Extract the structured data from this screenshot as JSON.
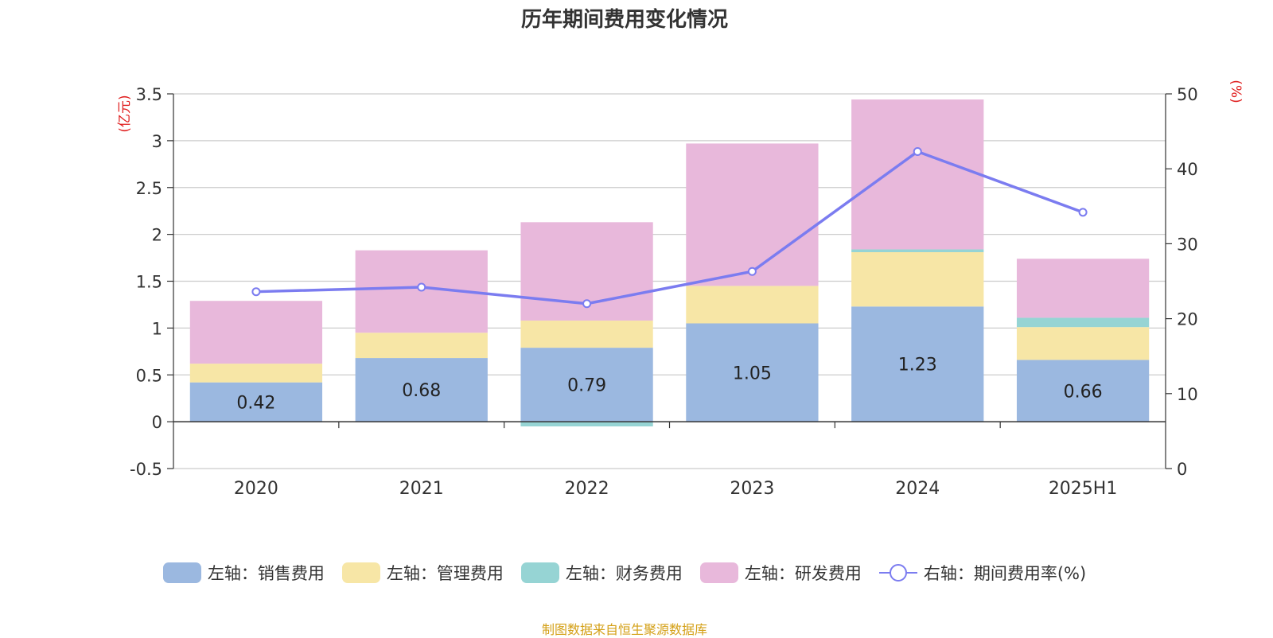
{
  "chart_data": {
    "type": "bar",
    "title": "历年期间费用变化情况",
    "left_unit": "(亿元)",
    "right_unit": "(%)",
    "categories": [
      "2020",
      "2021",
      "2022",
      "2023",
      "2024",
      "2025H1"
    ],
    "left_axis": {
      "ylim": [
        -0.5,
        3.5
      ],
      "ticks": [
        "-0.5",
        "0",
        "0.5",
        "1",
        "1.5",
        "2",
        "2.5",
        "3",
        "3.5"
      ]
    },
    "right_axis": {
      "ylim": [
        0,
        50
      ],
      "ticks": [
        "0",
        "10",
        "20",
        "30",
        "40",
        "50"
      ]
    },
    "series": [
      {
        "name": "左轴：销售费用",
        "type": "stacked-bar",
        "axis": "left",
        "color": "#9bb8e0",
        "values": [
          0.42,
          0.68,
          0.79,
          1.05,
          1.23,
          0.66
        ],
        "labels": [
          "0.42",
          "0.68",
          "0.79",
          "1.05",
          "1.23",
          "0.66"
        ]
      },
      {
        "name": "左轴：管理费用",
        "type": "stacked-bar",
        "axis": "left",
        "color": "#f7e6a6",
        "values": [
          0.2,
          0.27,
          0.29,
          0.4,
          0.58,
          0.35
        ]
      },
      {
        "name": "左轴：财务费用",
        "type": "stacked-bar",
        "axis": "left",
        "color": "#96d4d4",
        "values": [
          0.0,
          0.0,
          -0.05,
          0.0,
          0.03,
          0.1
        ]
      },
      {
        "name": "左轴：研发费用",
        "type": "stacked-bar",
        "axis": "left",
        "color": "#e8b8db",
        "values": [
          0.67,
          0.88,
          1.05,
          1.52,
          1.6,
          0.63
        ]
      },
      {
        "name": "右轴：期间费用率(%)",
        "type": "line",
        "axis": "right",
        "color": "#7b7cf0",
        "values": [
          23.6,
          24.2,
          22.0,
          26.3,
          42.3,
          34.2
        ]
      }
    ],
    "grid": true,
    "legend_position": "bottom"
  },
  "source_text": "制图数据来自恒生聚源数据库"
}
